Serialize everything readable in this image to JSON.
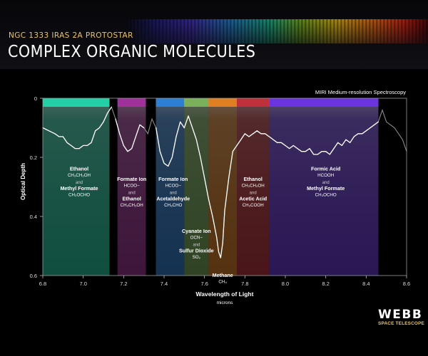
{
  "header": {
    "subtitle": "NGC 1333 IRAS 2A PROTOSTAR",
    "title": "COMPLEX ORGANIC MOLECULES"
  },
  "logo": {
    "name": "WEBB",
    "tagline": "SPACE TELESCOPE"
  },
  "chart_data": {
    "type": "line",
    "annotation": "MIRI Medium-resolution Spectroscopy",
    "xlabel": "Wavelength of Light",
    "xunit": "microns",
    "ylabel": "Optical Depth",
    "xlim": [
      6.8,
      8.6
    ],
    "ylim": [
      0,
      0.6
    ],
    "y_inverted": true,
    "x_ticks": [
      "6.8",
      "7.0",
      "7.2",
      "7.4",
      "7.6",
      "7.8",
      "8.0",
      "8.2",
      "8.4",
      "8.6"
    ],
    "y_ticks": [
      "0",
      "0.2",
      "0.4",
      "0.6"
    ],
    "grid": false,
    "x": [
      6.8,
      6.83,
      6.86,
      6.88,
      6.9,
      6.92,
      6.94,
      6.96,
      6.98,
      7.0,
      7.02,
      7.04,
      7.06,
      7.08,
      7.1,
      7.12,
      7.14,
      7.16,
      7.18,
      7.2,
      7.22,
      7.24,
      7.26,
      7.28,
      7.3,
      7.32,
      7.34,
      7.36,
      7.38,
      7.4,
      7.42,
      7.44,
      7.46,
      7.48,
      7.5,
      7.52,
      7.54,
      7.56,
      7.58,
      7.6,
      7.62,
      7.64,
      7.66,
      7.67,
      7.68,
      7.69,
      7.7,
      7.72,
      7.74,
      7.76,
      7.78,
      7.8,
      7.82,
      7.84,
      7.86,
      7.88,
      7.9,
      7.92,
      7.94,
      7.96,
      7.98,
      8.0,
      8.02,
      8.04,
      8.06,
      8.08,
      8.1,
      8.12,
      8.14,
      8.16,
      8.18,
      8.2,
      8.22,
      8.24,
      8.26,
      8.28,
      8.3,
      8.32,
      8.34,
      8.36,
      8.38,
      8.4,
      8.42,
      8.44,
      8.46,
      8.48,
      8.5,
      8.52,
      8.54,
      8.56,
      8.58,
      8.6
    ],
    "y": [
      0.1,
      0.11,
      0.12,
      0.13,
      0.13,
      0.15,
      0.16,
      0.17,
      0.17,
      0.16,
      0.16,
      0.15,
      0.11,
      0.1,
      0.08,
      0.05,
      0.03,
      0.07,
      0.12,
      0.16,
      0.18,
      0.17,
      0.13,
      0.09,
      0.1,
      0.12,
      0.07,
      0.1,
      0.18,
      0.22,
      0.23,
      0.2,
      0.13,
      0.08,
      0.1,
      0.06,
      0.1,
      0.14,
      0.2,
      0.27,
      0.34,
      0.4,
      0.47,
      0.52,
      0.54,
      0.49,
      0.38,
      0.27,
      0.18,
      0.16,
      0.14,
      0.12,
      0.13,
      0.12,
      0.11,
      0.12,
      0.12,
      0.13,
      0.14,
      0.15,
      0.15,
      0.16,
      0.17,
      0.16,
      0.17,
      0.18,
      0.18,
      0.17,
      0.19,
      0.19,
      0.18,
      0.18,
      0.19,
      0.17,
      0.15,
      0.16,
      0.14,
      0.15,
      0.13,
      0.12,
      0.12,
      0.11,
      0.1,
      0.09,
      0.08,
      0.04,
      0.08,
      0.09,
      0.1,
      0.12,
      0.14,
      0.18
    ],
    "bands": [
      {
        "x0": 6.8,
        "x1": 7.13,
        "color": "#22cfa6",
        "label": [
          {
            "t": "Ethanol",
            "k": "mol"
          },
          {
            "t": "CH₃CH₂OH",
            "k": "form"
          },
          {
            "t": "and",
            "k": "and"
          },
          {
            "t": "Methyl Formate",
            "k": "mol"
          },
          {
            "t": "CH₃OCHO",
            "k": "form"
          }
        ],
        "label_x": 6.98,
        "label_y": 0.245
      },
      {
        "x0": 7.17,
        "x1": 7.31,
        "color": "#a0309a",
        "label": [
          {
            "t": "Formate Ion",
            "k": "mol"
          },
          {
            "t": "HCOO−",
            "k": "form"
          },
          {
            "t": "and",
            "k": "and"
          },
          {
            "t": "Ethanol",
            "k": "mol"
          },
          {
            "t": "CH₃CH₂OH",
            "k": "form"
          }
        ],
        "label_x": 7.24,
        "label_y": 0.28
      },
      {
        "x0": 7.36,
        "x1": 7.5,
        "color": "#2d7fd6",
        "label": [
          {
            "t": "Formate Ion",
            "k": "mol"
          },
          {
            "t": "HCOO−",
            "k": "form"
          },
          {
            "t": "and",
            "k": "and"
          },
          {
            "t": "Acetaldehyde",
            "k": "mol"
          },
          {
            "t": "CH₃CHO",
            "k": "form"
          }
        ],
        "label_x": 7.445,
        "label_y": 0.28
      },
      {
        "x0": 7.5,
        "x1": 7.62,
        "color": "#7ab05a",
        "label": [
          {
            "t": "Cyanate Ion",
            "k": "mol"
          },
          {
            "t": "OCN−",
            "k": "form"
          },
          {
            "t": "and",
            "k": "and"
          },
          {
            "t": "Sulfur Dioxide",
            "k": "mol"
          },
          {
            "t": "SO₂",
            "k": "form"
          }
        ],
        "label_x": 7.56,
        "label_y": 0.455
      },
      {
        "x0": 7.62,
        "x1": 7.76,
        "color": "#e07f22",
        "label": [
          {
            "t": "Methane",
            "k": "mol"
          },
          {
            "t": "CH₄",
            "k": "form"
          }
        ],
        "label_x": 7.69,
        "label_y": 0.605
      },
      {
        "x0": 7.76,
        "x1": 7.92,
        "color": "#c0303a",
        "label": [
          {
            "t": "Ethanol",
            "k": "mol"
          },
          {
            "t": "CH₃CH₂OH",
            "k": "form"
          },
          {
            "t": "and",
            "k": "and"
          },
          {
            "t": "Acetic Acid",
            "k": "mol"
          },
          {
            "t": "CH₃COOH",
            "k": "form"
          }
        ],
        "label_x": 7.84,
        "label_y": 0.28
      },
      {
        "x0": 7.92,
        "x1": 8.46,
        "color": "#6a35e0",
        "label": [
          {
            "t": "Formic Acid",
            "k": "mol"
          },
          {
            "t": "HCOOH",
            "k": "form"
          },
          {
            "t": "and",
            "k": "and"
          },
          {
            "t": "Methyl Formate",
            "k": "mol"
          },
          {
            "t": "CH₃OCHO",
            "k": "form"
          }
        ],
        "label_x": 8.2,
        "label_y": 0.245
      }
    ]
  }
}
